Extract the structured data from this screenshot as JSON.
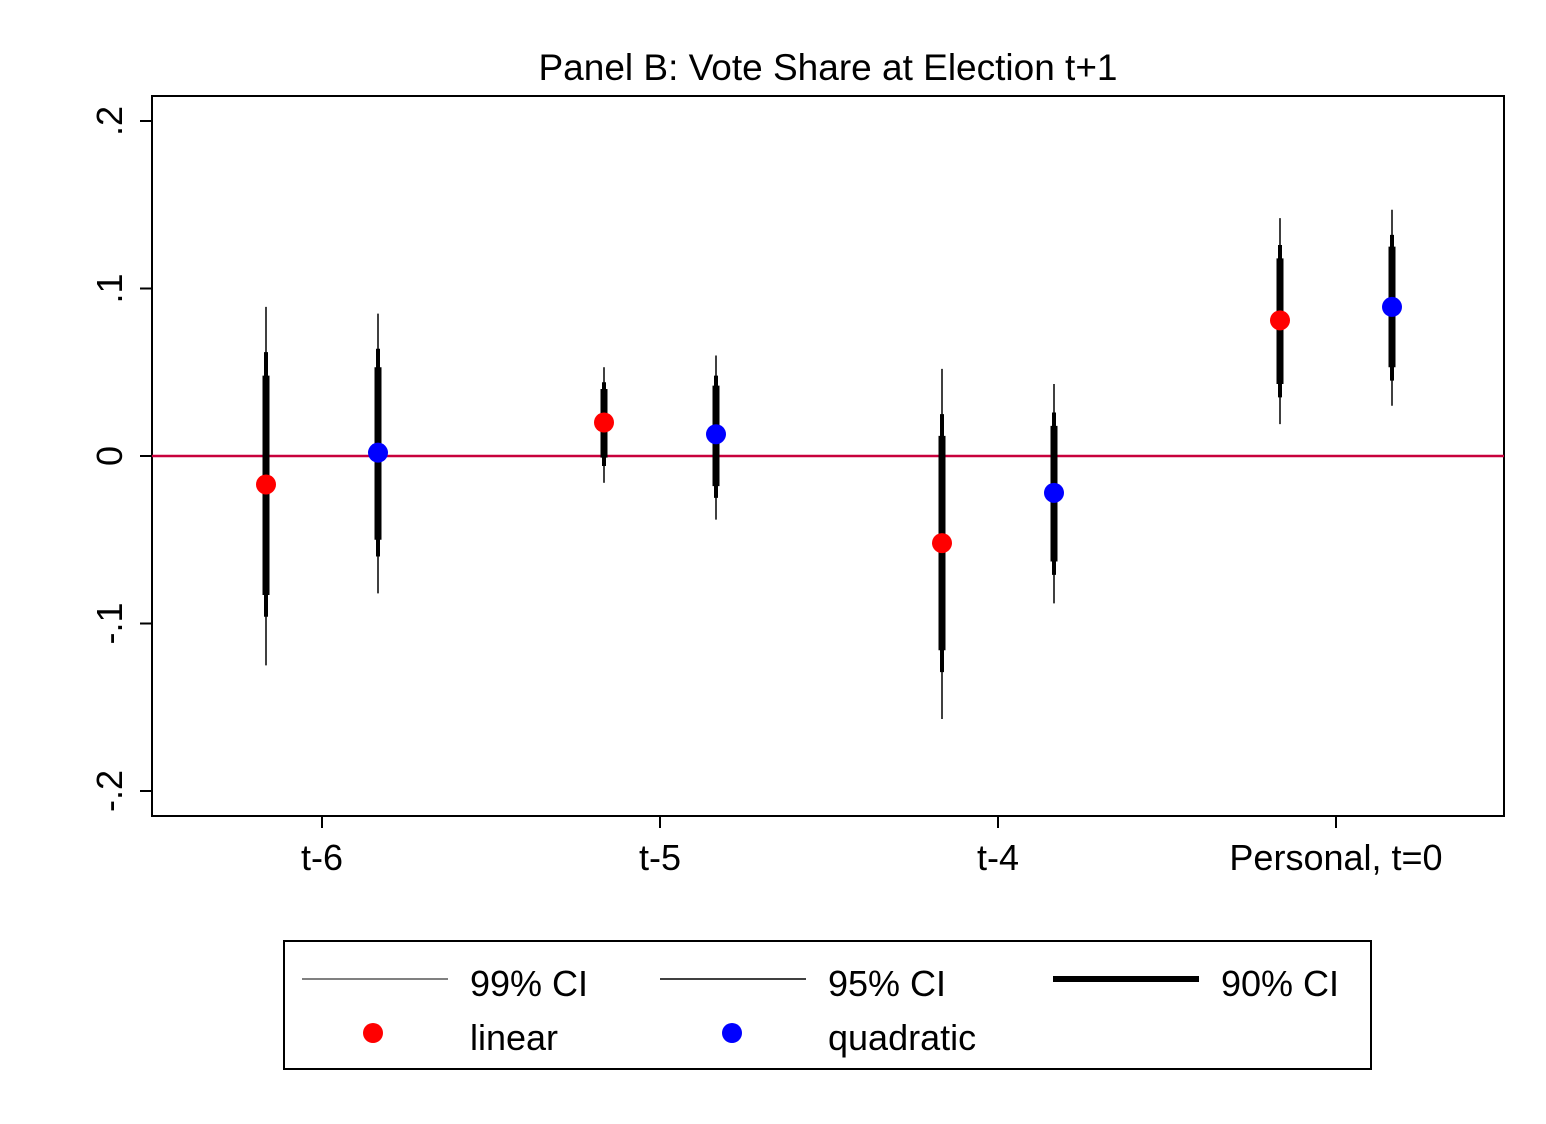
{
  "chart_data": {
    "type": "scatter",
    "title": "Panel B: Vote Share at Election t+1",
    "xlabel": "",
    "ylabel": "",
    "categories": [
      "t-6",
      "t-5",
      "t-4",
      "Personal, t=0"
    ],
    "ylim": [
      -0.215,
      0.215
    ],
    "yticks": [
      {
        "value": 0.2,
        "label": ".2"
      },
      {
        "value": 0.1,
        "label": ".1"
      },
      {
        "value": 0,
        "label": "0"
      },
      {
        "value": -0.1,
        "label": "-.1"
      },
      {
        "value": -0.2,
        "label": "-.2"
      }
    ],
    "reference_line": {
      "y": 0,
      "color": "#c8003c"
    },
    "grid": false,
    "legend_position": "bottom",
    "series": [
      {
        "name": "linear",
        "color": "#ff0000",
        "points": [
          {
            "category": "t-6",
            "estimate": -0.017,
            "ci90": [
              -0.083,
              0.048
            ],
            "ci95": [
              -0.096,
              0.062
            ],
            "ci99": [
              -0.125,
              0.089
            ]
          },
          {
            "category": "t-5",
            "estimate": 0.02,
            "ci90": [
              -0.001,
              0.04
            ],
            "ci95": [
              -0.006,
              0.044
            ],
            "ci99": [
              -0.016,
              0.053
            ]
          },
          {
            "category": "t-4",
            "estimate": -0.052,
            "ci90": [
              -0.116,
              0.012
            ],
            "ci95": [
              -0.129,
              0.025
            ],
            "ci99": [
              -0.157,
              0.052
            ]
          },
          {
            "category": "Personal, t=0",
            "estimate": 0.081,
            "ci90": [
              0.043,
              0.118
            ],
            "ci95": [
              0.035,
              0.126
            ],
            "ci99": [
              0.019,
              0.142
            ]
          }
        ]
      },
      {
        "name": "quadratic",
        "color": "#0000ff",
        "points": [
          {
            "category": "t-6",
            "estimate": 0.002,
            "ci90": [
              -0.05,
              0.053
            ],
            "ci95": [
              -0.06,
              0.064
            ],
            "ci99": [
              -0.082,
              0.085
            ]
          },
          {
            "category": "t-5",
            "estimate": 0.013,
            "ci90": [
              -0.018,
              0.042
            ],
            "ci95": [
              -0.025,
              0.048
            ],
            "ci99": [
              -0.038,
              0.06
            ]
          },
          {
            "category": "t-4",
            "estimate": -0.022,
            "ci90": [
              -0.063,
              0.018
            ],
            "ci95": [
              -0.071,
              0.026
            ],
            "ci99": [
              -0.088,
              0.043
            ]
          },
          {
            "category": "Personal, t=0",
            "estimate": 0.089,
            "ci90": [
              0.053,
              0.125
            ],
            "ci95": [
              0.045,
              0.132
            ],
            "ci99": [
              0.03,
              0.147
            ]
          }
        ]
      }
    ],
    "legend": {
      "ci99": "99% CI",
      "ci95": "95% CI",
      "ci90": "90% CI",
      "linear": "linear",
      "quadratic": "quadratic"
    }
  }
}
